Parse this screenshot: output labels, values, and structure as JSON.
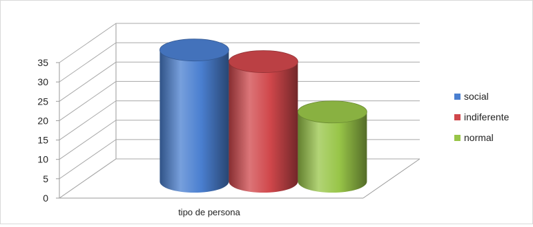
{
  "chart_data": {
    "type": "bar",
    "variant": "3d-cylinder",
    "title": "",
    "xlabel": "",
    "ylabel": "",
    "categories": [
      "tipo de persona"
    ],
    "series": [
      {
        "name": "social",
        "values": [
          34
        ],
        "color": "#4a7fd0"
      },
      {
        "name": "indiferente",
        "values": [
          31
        ],
        "color": "#d0474b"
      },
      {
        "name": "normal",
        "values": [
          18
        ],
        "color": "#98c548"
      }
    ],
    "ylim": [
      0,
      35
    ],
    "yticks": [
      "0",
      "5",
      "10",
      "15",
      "20",
      "25",
      "30",
      "35"
    ],
    "grid": true,
    "legend_position": "right"
  }
}
